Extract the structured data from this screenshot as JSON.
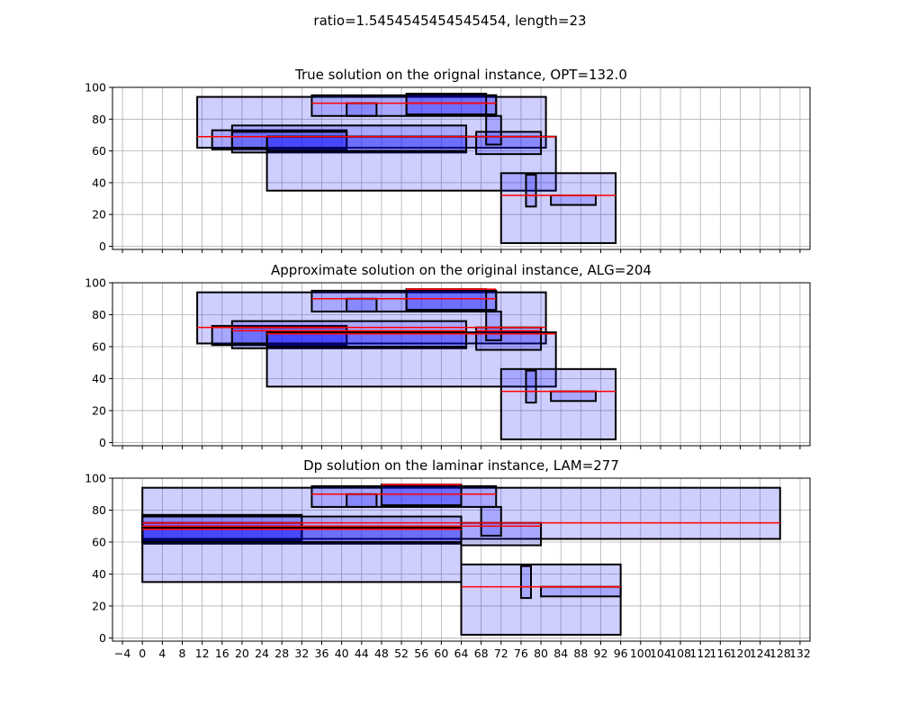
{
  "figure": {
    "suptitle": "ratio=1.5454545454545454, length=23"
  },
  "chart_data": [
    {
      "type": "rectangles",
      "title": "True solution on the orignal instance, OPT=132.0",
      "xlim": [
        -6,
        134
      ],
      "ylim": [
        -2,
        100
      ],
      "x_ticks": [
        -4,
        0,
        4,
        8,
        12,
        16,
        20,
        24,
        28,
        32,
        36,
        40,
        44,
        48,
        52,
        56,
        60,
        64,
        68,
        72,
        76,
        80,
        84,
        88,
        92,
        96,
        100,
        104,
        108,
        112,
        116,
        120,
        124,
        128,
        132
      ],
      "x_tick_labels_shown": false,
      "y_ticks": [
        0,
        20,
        40,
        60,
        80,
        100
      ],
      "grid": true,
      "rectangles": [
        {
          "x0": 11,
          "x1": 81,
          "y0": 62,
          "y1": 94,
          "line_y": 69
        },
        {
          "x0": 14,
          "x1": 41,
          "y0": 61,
          "y1": 73,
          "line_y": 69
        },
        {
          "x0": 18,
          "x1": 65,
          "y0": 59,
          "y1": 76,
          "line_y": 69
        },
        {
          "x0": 18,
          "x1": 41,
          "y0": 62,
          "y1": 72,
          "line_y": 69
        },
        {
          "x0": 25,
          "x1": 83,
          "y0": 35,
          "y1": 69,
          "line_y": 69
        },
        {
          "x0": 25,
          "x1": 65,
          "y0": 60,
          "y1": 69,
          "line_y": 69
        },
        {
          "x0": 34,
          "x1": 71,
          "y0": 82,
          "y1": 95,
          "line_y": 90
        },
        {
          "x0": 41,
          "x1": 47,
          "y0": 82,
          "y1": 90,
          "line_y": 90
        },
        {
          "x0": 53,
          "x1": 71,
          "y0": 83,
          "y1": 95,
          "line_y": 90
        },
        {
          "x0": 53,
          "x1": 69,
          "y0": 83,
          "y1": 96,
          "line_y": 90
        },
        {
          "x0": 67,
          "x1": 80,
          "y0": 58,
          "y1": 72,
          "line_y": 69
        },
        {
          "x0": 69,
          "x1": 72,
          "y0": 64,
          "y1": 82,
          "line_y": 69
        },
        {
          "x0": 72,
          "x1": 95,
          "y0": 2,
          "y1": 46,
          "line_y": 32
        },
        {
          "x0": 77,
          "x1": 79,
          "y0": 25,
          "y1": 45,
          "line_y": 32
        },
        {
          "x0": 82,
          "x1": 91,
          "y0": 26,
          "y1": 32,
          "line_y": 32
        }
      ]
    },
    {
      "type": "rectangles",
      "title": "Approximate solution on the original instance, ALG=204",
      "xlim": [
        -6,
        134
      ],
      "ylim": [
        -2,
        100
      ],
      "x_ticks": [
        -4,
        0,
        4,
        8,
        12,
        16,
        20,
        24,
        28,
        32,
        36,
        40,
        44,
        48,
        52,
        56,
        60,
        64,
        68,
        72,
        76,
        80,
        84,
        88,
        92,
        96,
        100,
        104,
        108,
        112,
        116,
        120,
        124,
        128,
        132
      ],
      "x_tick_labels_shown": false,
      "y_ticks": [
        0,
        20,
        40,
        60,
        80,
        100
      ],
      "grid": true,
      "rectangles": [
        {
          "x0": 11,
          "x1": 81,
          "y0": 62,
          "y1": 94,
          "line_y": 72
        },
        {
          "x0": 14,
          "x1": 41,
          "y0": 61,
          "y1": 73,
          "line_y": 72
        },
        {
          "x0": 18,
          "x1": 65,
          "y0": 59,
          "y1": 76,
          "line_y": 70
        },
        {
          "x0": 18,
          "x1": 41,
          "y0": 62,
          "y1": 72,
          "line_y": 70
        },
        {
          "x0": 25,
          "x1": 83,
          "y0": 35,
          "y1": 69,
          "line_y": 68
        },
        {
          "x0": 25,
          "x1": 65,
          "y0": 60,
          "y1": 69,
          "line_y": 68
        },
        {
          "x0": 34,
          "x1": 71,
          "y0": 82,
          "y1": 95,
          "line_y": 90
        },
        {
          "x0": 41,
          "x1": 47,
          "y0": 82,
          "y1": 90,
          "line_y": 90
        },
        {
          "x0": 53,
          "x1": 71,
          "y0": 83,
          "y1": 95,
          "line_y": 96
        },
        {
          "x0": 53,
          "x1": 69,
          "y0": 83,
          "y1": 96,
          "line_y": 96
        },
        {
          "x0": 67,
          "x1": 80,
          "y0": 58,
          "y1": 72,
          "line_y": 70
        },
        {
          "x0": 69,
          "x1": 72,
          "y0": 64,
          "y1": 82,
          "line_y": 72
        },
        {
          "x0": 72,
          "x1": 95,
          "y0": 2,
          "y1": 46,
          "line_y": 32
        },
        {
          "x0": 77,
          "x1": 79,
          "y0": 25,
          "y1": 45,
          "line_y": 32
        },
        {
          "x0": 82,
          "x1": 91,
          "y0": 26,
          "y1": 32,
          "line_y": 32
        }
      ]
    },
    {
      "type": "rectangles",
      "title": "Dp solution on the laminar instance, LAM=277",
      "xlim": [
        -6,
        134
      ],
      "ylim": [
        -2,
        100
      ],
      "x_ticks": [
        -4,
        0,
        4,
        8,
        12,
        16,
        20,
        24,
        28,
        32,
        36,
        40,
        44,
        48,
        52,
        56,
        60,
        64,
        68,
        72,
        76,
        80,
        84,
        88,
        92,
        96,
        100,
        104,
        108,
        112,
        116,
        120,
        124,
        128,
        132
      ],
      "x_tick_labels_shown": true,
      "y_ticks": [
        0,
        20,
        40,
        60,
        80,
        100
      ],
      "grid": true,
      "rectangles": [
        {
          "x0": 0,
          "x1": 128,
          "y0": 62,
          "y1": 94,
          "line_y": 72
        },
        {
          "x0": 0,
          "x1": 32,
          "y0": 61,
          "y1": 77,
          "line_y": 72
        },
        {
          "x0": 0,
          "x1": 64,
          "y0": 59,
          "y1": 76,
          "line_y": 70
        },
        {
          "x0": 0,
          "x1": 32,
          "y0": 62,
          "y1": 72,
          "line_y": 70
        },
        {
          "x0": 0,
          "x1": 64,
          "y0": 35,
          "y1": 69,
          "line_y": 68
        },
        {
          "x0": 0,
          "x1": 64,
          "y0": 60,
          "y1": 69,
          "line_y": 68
        },
        {
          "x0": 34,
          "x1": 71,
          "y0": 82,
          "y1": 95,
          "line_y": 90
        },
        {
          "x0": 41,
          "x1": 47,
          "y0": 82,
          "y1": 90,
          "line_y": 90
        },
        {
          "x0": 48,
          "x1": 64,
          "y0": 83,
          "y1": 95,
          "line_y": 96
        },
        {
          "x0": 48,
          "x1": 64,
          "y0": 83,
          "y1": 96,
          "line_y": 96
        },
        {
          "x0": 64,
          "x1": 80,
          "y0": 58,
          "y1": 72,
          "line_y": 70
        },
        {
          "x0": 68,
          "x1": 72,
          "y0": 64,
          "y1": 82,
          "line_y": 72
        },
        {
          "x0": 64,
          "x1": 96,
          "y0": 2,
          "y1": 46,
          "line_y": 32
        },
        {
          "x0": 76,
          "x1": 78,
          "y0": 25,
          "y1": 45,
          "line_y": 32
        },
        {
          "x0": 80,
          "x1": 96,
          "y0": 26,
          "y1": 32,
          "line_y": 32
        }
      ]
    }
  ]
}
